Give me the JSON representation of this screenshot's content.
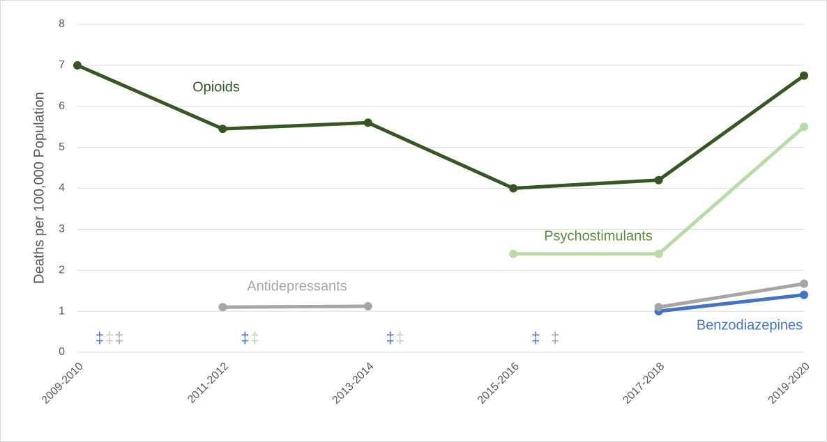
{
  "chart_data": {
    "type": "line",
    "y_label": "Deaths per 100,000 Population",
    "categories": [
      "2009-2010",
      "2011-2012",
      "2013-2014",
      "2015-2016",
      "2017-2018",
      "2019-2020"
    ],
    "series": [
      {
        "name": "Opioids",
        "color": "#375623",
        "values": [
          7.0,
          5.45,
          5.6,
          4.0,
          4.2,
          6.75
        ]
      },
      {
        "name": "Benzodiazepines",
        "color": "#4472c4",
        "values": [
          null,
          null,
          null,
          null,
          1.0,
          1.4
        ],
        "value_labels": [
          "‡",
          "‡",
          "‡",
          "‡",
          null,
          null
        ]
      },
      {
        "name": "Psychostimulants",
        "color": "#b9dba8",
        "values": [
          null,
          null,
          null,
          2.4,
          2.4,
          5.5
        ],
        "value_labels": [
          "‡",
          "‡",
          "‡",
          null,
          null,
          null
        ]
      },
      {
        "name": "Antidepressants",
        "color": "#a6a6a6",
        "values": [
          null,
          1.1,
          1.12,
          null,
          1.1,
          1.67
        ],
        "value_labels": [
          "‡",
          null,
          null,
          "‡",
          null,
          null
        ]
      }
    ],
    "ylim": [
      0,
      8
    ],
    "yticks": [
      0,
      1,
      2,
      3,
      4,
      5,
      6,
      7,
      8
    ],
    "grid": true
  }
}
